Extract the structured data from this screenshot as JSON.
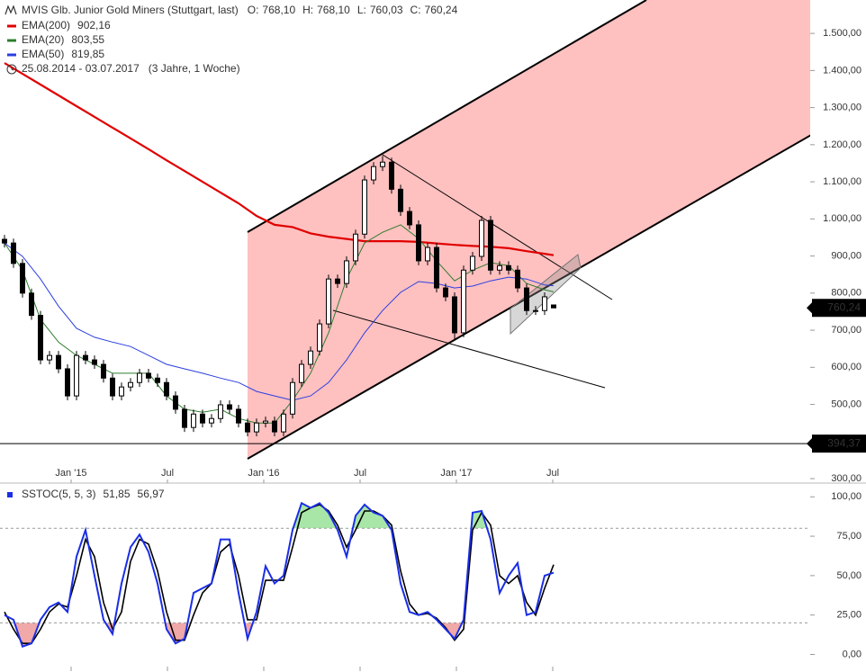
{
  "chart_data": [
    {
      "type": "candlestick",
      "title": "MVIS Glb. Junior Gold Miners (Stuttgart, last)",
      "quote": [
        {
          "label": "O:",
          "value": "768,10"
        },
        {
          "label": "H:",
          "value": "768,10"
        },
        {
          "label": "L:",
          "value": "760,03"
        },
        {
          "label": "C:",
          "value": "760,24"
        }
      ],
      "date_range": "25.08.2014 - 03.07.2017",
      "period": "(3 Jahre, 1 Woche)",
      "xlim": [
        -0.5,
        89.5
      ],
      "xticks": [
        {
          "value": 7.4,
          "label": "Jan '15"
        },
        {
          "value": 18.1,
          "label": "Jul"
        },
        {
          "value": 28.8,
          "label": "Jan '16"
        },
        {
          "value": 39.5,
          "label": "Jul"
        },
        {
          "value": 50.2,
          "label": "Jan '17"
        },
        {
          "value": 60.9,
          "label": "Jul"
        }
      ],
      "ylim": [
        288,
        1590
      ],
      "yticks": [
        {
          "value": 300,
          "label": "300,00"
        },
        {
          "value": 400,
          "label": "400,00"
        },
        {
          "value": 500,
          "label": "500,00"
        },
        {
          "value": 600,
          "label": "600,00"
        },
        {
          "value": 700,
          "label": "700,00"
        },
        {
          "value": 800,
          "label": "800,00"
        },
        {
          "value": 900,
          "label": "900,00"
        },
        {
          "value": 1000,
          "label": "1.000,00"
        },
        {
          "value": 1100,
          "label": "1.100,00"
        },
        {
          "value": 1200,
          "label": "1.200,00"
        },
        {
          "value": 1300,
          "label": "1.300,00"
        },
        {
          "value": 1400,
          "label": "1.400,00"
        },
        {
          "value": 1500,
          "label": "1.500,00"
        }
      ],
      "ohlc": [
        [
          945,
          957,
          923,
          935
        ],
        [
          935,
          947,
          868,
          880
        ],
        [
          880,
          892,
          788,
          800
        ],
        [
          800,
          812,
          728,
          740
        ],
        [
          740,
          752,
          608,
          620
        ],
        [
          620,
          644,
          608,
          632
        ],
        [
          632,
          644,
          584,
          596
        ],
        [
          596,
          608,
          511,
          523
        ],
        [
          523,
          644,
          511,
          632
        ],
        [
          632,
          644,
          608,
          620
        ],
        [
          620,
          632,
          596,
          608
        ],
        [
          608,
          620,
          559,
          571
        ],
        [
          571,
          583,
          511,
          523
        ],
        [
          523,
          559,
          511,
          547
        ],
        [
          547,
          571,
          535,
          559
        ],
        [
          559,
          596,
          547,
          584
        ],
        [
          584,
          596,
          559,
          571
        ],
        [
          571,
          583,
          547,
          559
        ],
        [
          559,
          571,
          511,
          523
        ],
        [
          523,
          535,
          475,
          487
        ],
        [
          487,
          499,
          426,
          438
        ],
        [
          438,
          486,
          426,
          474
        ],
        [
          474,
          486,
          438,
          450
        ],
        [
          450,
          474,
          438,
          462
        ],
        [
          462,
          511,
          450,
          499
        ],
        [
          499,
          511,
          475,
          487
        ],
        [
          487,
          499,
          438,
          450
        ],
        [
          450,
          462,
          414,
          426
        ],
        [
          426,
          462,
          414,
          450
        ],
        [
          450,
          467,
          438,
          455
        ],
        [
          455,
          467,
          414,
          426
        ],
        [
          426,
          486,
          414,
          474
        ],
        [
          474,
          571,
          462,
          559
        ],
        [
          559,
          620,
          547,
          608
        ],
        [
          608,
          656,
          596,
          644
        ],
        [
          644,
          729,
          632,
          717
        ],
        [
          717,
          850,
          705,
          838
        ],
        [
          838,
          850,
          814,
          826
        ],
        [
          826,
          899,
          814,
          887
        ],
        [
          887,
          971,
          875,
          959
        ],
        [
          959,
          1117,
          947,
          1105
        ],
        [
          1105,
          1153,
          1093,
          1141
        ],
        [
          1141,
          1170,
          1129,
          1153
        ],
        [
          1153,
          1165,
          1068,
          1080
        ],
        [
          1080,
          1092,
          1008,
          1020
        ],
        [
          1020,
          1032,
          972,
          984
        ],
        [
          984,
          996,
          875,
          887
        ],
        [
          887,
          935,
          875,
          923
        ],
        [
          923,
          935,
          802,
          814
        ],
        [
          814,
          826,
          778,
          790
        ],
        [
          790,
          802,
          672,
          693
        ],
        [
          693,
          874,
          681,
          862
        ],
        [
          862,
          911,
          850,
          899
        ],
        [
          899,
          1008,
          887,
          996
        ],
        [
          996,
          1008,
          850,
          862
        ],
        [
          862,
          886,
          850,
          874
        ],
        [
          874,
          886,
          850,
          862
        ],
        [
          862,
          874,
          802,
          814
        ],
        [
          814,
          826,
          741,
          753
        ],
        [
          753,
          765,
          741,
          753
        ],
        [
          753,
          802,
          741,
          790
        ],
        [
          768.1,
          768.1,
          760.03,
          760.24
        ]
      ],
      "series": [
        {
          "name": "EMA(200)",
          "color": "#e00000",
          "value_label": "902,16",
          "x": [
            0,
            2,
            4,
            6,
            8,
            10,
            12,
            14,
            16,
            18,
            20,
            22,
            24,
            26,
            28,
            30,
            32,
            34,
            36,
            38,
            40,
            42,
            44,
            46,
            48,
            50,
            52,
            54,
            56,
            58,
            60,
            61
          ],
          "values": [
            1420,
            1391,
            1362,
            1333,
            1304,
            1275,
            1246,
            1217,
            1188,
            1158,
            1129,
            1100,
            1071,
            1042,
            1008,
            984,
            978,
            961,
            952,
            946,
            940,
            940,
            940,
            938,
            934,
            930,
            927,
            925,
            921,
            913,
            906,
            902.16
          ]
        },
        {
          "name": "EMA(20)",
          "color": "#2e7d2e",
          "value_label": "803,55",
          "x": [
            0,
            2,
            4,
            6,
            8,
            10,
            12,
            14,
            16,
            18,
            20,
            22,
            24,
            26,
            28,
            30,
            32,
            34,
            36,
            38,
            40,
            42,
            44,
            46,
            48,
            50,
            52,
            54,
            56,
            58,
            60,
            61
          ],
          "values": [
            935,
            862,
            729,
            668,
            632,
            608,
            584,
            584,
            584,
            523,
            487,
            479,
            487,
            462,
            450,
            450,
            511,
            584,
            693,
            838,
            935,
            964,
            984,
            947,
            887,
            833,
            862,
            882,
            874,
            826,
            809,
            803.55
          ]
        },
        {
          "name": "EMA(50)",
          "color": "#2b3fe0",
          "value_label": "819,85",
          "x": [
            0,
            2,
            4,
            6,
            8,
            10,
            12,
            14,
            16,
            18,
            20,
            22,
            24,
            26,
            28,
            30,
            32,
            34,
            36,
            38,
            40,
            42,
            44,
            46,
            48,
            50,
            52,
            54,
            56,
            58,
            60,
            61
          ],
          "values": [
            935,
            899,
            838,
            765,
            705,
            681,
            668,
            656,
            632,
            608,
            596,
            584,
            571,
            559,
            535,
            523,
            511,
            523,
            559,
            620,
            693,
            753,
            802,
            831,
            826,
            814,
            819,
            833,
            843,
            838,
            822,
            819.85
          ]
        }
      ],
      "price_markers": [
        {
          "value": 760.24,
          "label": "760,24"
        },
        {
          "value": 394.37,
          "label": "394,37"
        }
      ]
    },
    {
      "type": "line",
      "title": "SSTOC(5, 5, 3)",
      "xlim": [
        -0.5,
        89.5
      ],
      "ylim": [
        -10,
        107
      ],
      "yticks": [
        {
          "value": 0,
          "label": "0,00"
        },
        {
          "value": 25,
          "label": "25,00"
        },
        {
          "value": 50,
          "label": "50,00"
        },
        {
          "value": 75,
          "label": "75,00"
        },
        {
          "value": 100,
          "label": "100,00"
        }
      ],
      "levels": [
        20,
        80
      ],
      "series": [
        {
          "color": "#1a2ee6",
          "value_label": "51,85",
          "values": [
            25,
            22,
            5,
            7,
            22,
            30,
            33,
            27,
            62,
            79,
            50,
            22,
            13,
            45,
            68,
            76,
            65,
            45,
            16,
            7,
            10,
            39,
            42,
            45,
            73,
            73,
            39,
            10,
            27,
            56,
            45,
            50,
            79,
            96,
            93,
            96,
            90,
            79,
            62,
            88,
            95,
            90,
            88,
            79,
            45,
            27,
            25,
            27,
            22,
            16,
            10,
            22,
            90,
            91,
            73,
            39,
            50,
            58,
            25,
            27,
            50,
            51.85
          ]
        },
        {
          "color": "#000000",
          "value_label": "56,97",
          "values": [
            27,
            16,
            7,
            7,
            16,
            27,
            32,
            30,
            50,
            73,
            62,
            33,
            16,
            27,
            59,
            73,
            70,
            53,
            27,
            9,
            9,
            25,
            39,
            45,
            65,
            70,
            50,
            22,
            22,
            47,
            47,
            47,
            68,
            90,
            93,
            95,
            91,
            82,
            68,
            79,
            91,
            91,
            88,
            82,
            53,
            32,
            25,
            26,
            23,
            17,
            9,
            16,
            79,
            90,
            82,
            50,
            45,
            50,
            33,
            25,
            42,
            56.97
          ]
        }
      ]
    }
  ]
}
